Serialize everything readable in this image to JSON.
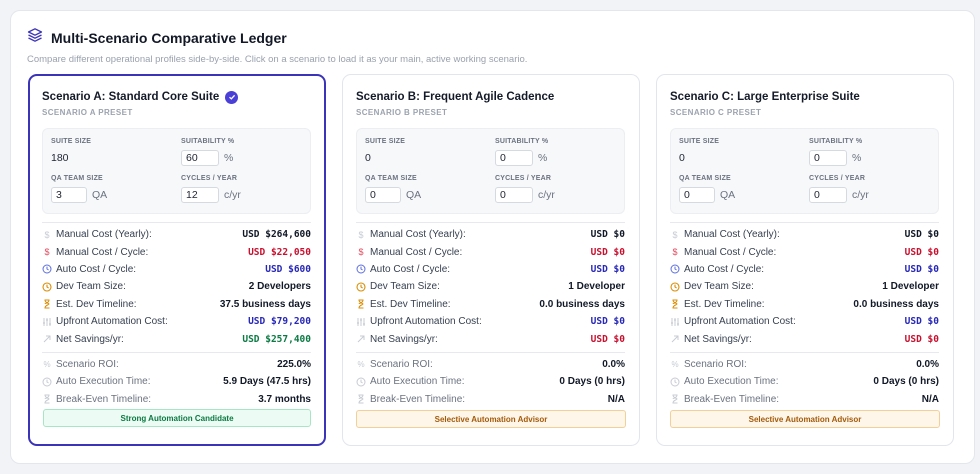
{
  "header": {
    "title": "Multi-Scenario Comparative Ledger",
    "subtitle": "Compare different operational profiles side-by-side. Click on a scenario to load it as your main, active working scenario."
  },
  "labels": {
    "suite_size": "SUITE SIZE",
    "suitability": "SUITABILITY %",
    "qa_team_size": "QA TEAM SIZE",
    "cycles_year": "CYCLES / YEAR",
    "pct": "%",
    "qa": "QA",
    "cyr": "c/yr",
    "manual_yearly": "Manual Cost (Yearly):",
    "manual_cycle": "Manual Cost / Cycle:",
    "auto_cycle": "Auto Cost / Cycle:",
    "dev_team": "Dev Team Size:",
    "dev_timeline": "Est. Dev Timeline:",
    "upfront": "Upfront Automation Cost:",
    "net_savings": "Net Savings/yr:",
    "roi": "Scenario ROI:",
    "exec_time": "Auto Execution Time:",
    "breakeven": "Break-Even Timeline:"
  },
  "colors": {
    "accent": "#3b33b8",
    "red": "#c8102e",
    "blue": "#2727b8",
    "green": "#0b7a43",
    "amber": "#d98e04"
  },
  "scenarios": [
    {
      "title": "Scenario A: Standard Core Suite",
      "preset": "SCENARIO A PRESET",
      "active": true,
      "suite_size": "180",
      "suitability": "60",
      "qa_team": "3",
      "cycles": "12",
      "manual_yearly": "USD $264,600",
      "manual_cycle": "USD $22,050",
      "auto_cycle": "USD $600",
      "dev_team": "2 Developers",
      "dev_timeline": "37.5 business days",
      "upfront": "USD $79,200",
      "net_savings": "USD $257,400",
      "roi": "225.0%",
      "exec_time": "5.9 Days (47.5 hrs)",
      "breakeven": "3.7 months",
      "badge": "Strong Automation Candidate",
      "badge_style": "green"
    },
    {
      "title": "Scenario B: Frequent Agile Cadence",
      "preset": "SCENARIO B PRESET",
      "active": false,
      "suite_size": "0",
      "suitability": "0",
      "qa_team": "0",
      "cycles": "0",
      "manual_yearly": "USD $0",
      "manual_cycle": "USD $0",
      "auto_cycle": "USD $0",
      "dev_team": "1 Developer",
      "dev_timeline": "0.0 business days",
      "upfront": "USD $0",
      "net_savings": "USD $0",
      "roi": "0.0%",
      "exec_time": "0 Days (0 hrs)",
      "breakeven": "N/A",
      "badge": "Selective Automation Advisor",
      "badge_style": "orange"
    },
    {
      "title": "Scenario C: Large Enterprise Suite",
      "preset": "SCENARIO C PRESET",
      "active": false,
      "suite_size": "0",
      "suitability": "0",
      "qa_team": "0",
      "cycles": "0",
      "manual_yearly": "USD $0",
      "manual_cycle": "USD $0",
      "auto_cycle": "USD $0",
      "dev_team": "1 Developer",
      "dev_timeline": "0.0 business days",
      "upfront": "USD $0",
      "net_savings": "USD $0",
      "roi": "0.0%",
      "exec_time": "0 Days (0 hrs)",
      "breakeven": "N/A",
      "badge": "Selective Automation Advisor",
      "badge_style": "orange"
    }
  ]
}
